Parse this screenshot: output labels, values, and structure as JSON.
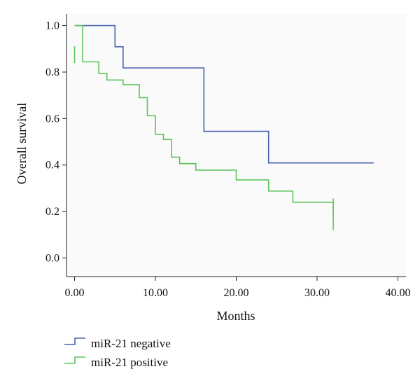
{
  "chart_data": {
    "type": "line",
    "step": true,
    "title": "",
    "xlabel": "Months",
    "ylabel": "Overall survival",
    "xlim": [
      -1,
      41
    ],
    "ylim": [
      -0.08,
      1.05
    ],
    "x_ticks": [
      0,
      10,
      20,
      30,
      40
    ],
    "x_tick_labels": [
      "0.00",
      "10.00",
      "20.00",
      "30.00",
      "40.00"
    ],
    "y_ticks": [
      0.0,
      0.2,
      0.4,
      0.6,
      0.8,
      1.0
    ],
    "y_tick_labels": [
      "0.0",
      "0.2",
      "0.4",
      "0.6",
      "0.8",
      "1.0"
    ],
    "grid": false,
    "legend_position": "bottom-left",
    "series": [
      {
        "name": "miR-21 negative",
        "color": "#4a63b0",
        "x": [
          0,
          5,
          6,
          16,
          24,
          37
        ],
        "y": [
          1.0,
          0.909,
          0.818,
          0.545,
          0.409,
          0.409
        ],
        "censored_x": [],
        "censored_y": []
      },
      {
        "name": "miR-21 positive",
        "color": "#5cc45c",
        "x": [
          0,
          1,
          3,
          4,
          6,
          8,
          9,
          10,
          11,
          12,
          13,
          15,
          20,
          24,
          27,
          32
        ],
        "y": [
          1.0,
          0.844,
          0.794,
          0.766,
          0.746,
          0.69,
          0.612,
          0.532,
          0.51,
          0.434,
          0.406,
          0.378,
          0.336,
          0.288,
          0.24,
          0.12
        ],
        "censored_x": [
          0,
          32
        ],
        "censored_y": [
          0.875,
          0.22
        ]
      }
    ]
  }
}
